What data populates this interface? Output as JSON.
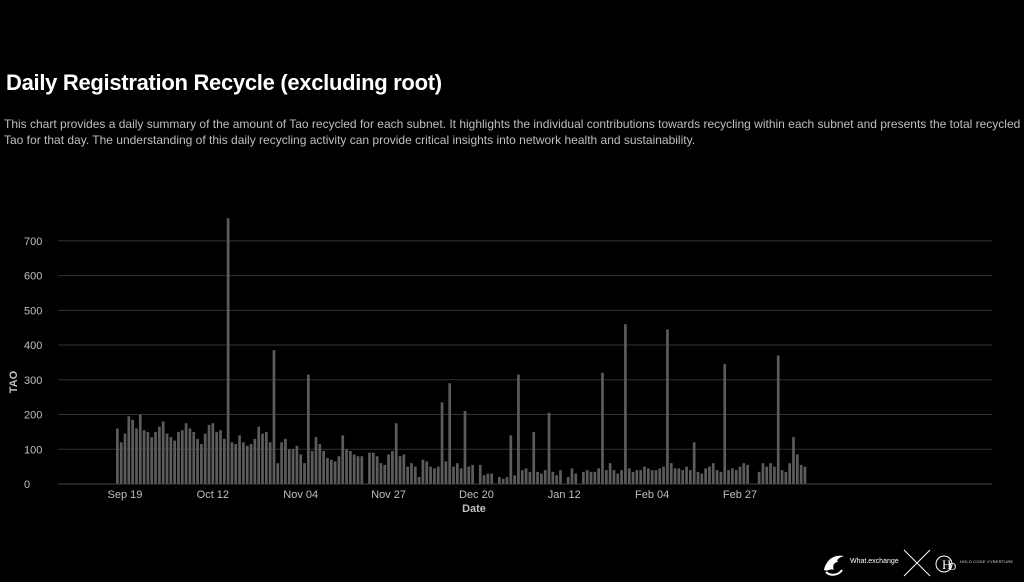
{
  "page": {
    "title": "Daily Registration Recycle (excluding root)",
    "description": "This chart provides a daily summary of the amount of Tao recycled for each subnet. It highlights the individual contributions towards recycling within each subnet and presents the total recycled Tao for that day. The understanding of this daily recycling activity can provide critical insights into network health and sustainability."
  },
  "footer": {
    "brand1": "What.exchange",
    "brand2": "HOLD CODE CYBERTURE",
    "icons": [
      "bird-logo-icon",
      "x-cross-icon",
      "hd-logo-icon"
    ]
  },
  "colors": {
    "background": "#000000",
    "bar": "#5c5c5c",
    "grid": "#333333",
    "axis_text": "#bfbfbf"
  },
  "chart_data": {
    "type": "bar",
    "title": "Daily Registration Recycle (excluding root)",
    "xlabel": "Date",
    "ylabel": "TAO",
    "ylim": [
      0,
      760
    ],
    "yticks": [
      0,
      100,
      200,
      300,
      400,
      500,
      600,
      700
    ],
    "grid": true,
    "x_start": "Sep 17",
    "xticks": [
      {
        "label": "Sep 19",
        "day": 2
      },
      {
        "label": "Oct 12",
        "day": 25
      },
      {
        "label": "Nov 04",
        "day": 48
      },
      {
        "label": "Nov 27",
        "day": 71
      },
      {
        "label": "Dec 20",
        "day": 94
      },
      {
        "label": "Jan 12",
        "day": 117
      },
      {
        "label": "Feb 04",
        "day": 140
      },
      {
        "label": "Feb 27",
        "day": 163
      }
    ],
    "values": [
      160,
      120,
      145,
      195,
      185,
      160,
      200,
      155,
      150,
      135,
      150,
      165,
      180,
      145,
      135,
      125,
      150,
      155,
      175,
      160,
      150,
      130,
      115,
      145,
      170,
      175,
      150,
      155,
      130,
      765,
      120,
      115,
      140,
      120,
      110,
      115,
      130,
      165,
      145,
      150,
      120,
      385,
      60,
      120,
      130,
      100,
      100,
      110,
      85,
      60,
      315,
      95,
      135,
      115,
      95,
      75,
      70,
      65,
      80,
      140,
      100,
      95,
      85,
      80,
      80,
      0,
      90,
      90,
      80,
      60,
      55,
      85,
      95,
      175,
      80,
      85,
      50,
      60,
      50,
      20,
      70,
      65,
      50,
      45,
      50,
      235,
      65,
      290,
      50,
      60,
      45,
      210,
      50,
      55,
      0,
      55,
      25,
      30,
      30,
      0,
      20,
      15,
      20,
      140,
      25,
      315,
      40,
      45,
      35,
      150,
      35,
      30,
      40,
      205,
      35,
      25,
      40,
      0,
      20,
      45,
      30,
      0,
      35,
      40,
      35,
      35,
      45,
      320,
      40,
      60,
      40,
      30,
      40,
      460,
      45,
      35,
      40,
      40,
      50,
      45,
      40,
      40,
      45,
      50,
      445,
      60,
      45,
      45,
      40,
      50,
      40,
      120,
      35,
      30,
      45,
      50,
      60,
      40,
      35,
      345,
      40,
      45,
      40,
      50,
      60,
      55,
      0,
      0,
      35,
      60,
      50,
      60,
      50,
      370,
      40,
      35,
      60,
      135,
      85,
      55,
      50
    ]
  }
}
